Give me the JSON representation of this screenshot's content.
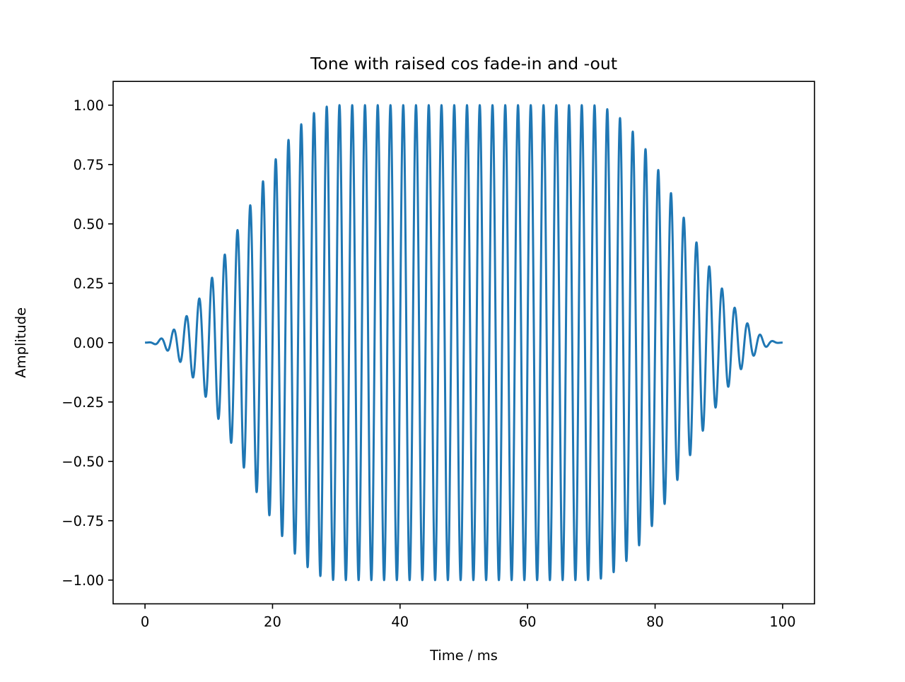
{
  "chart_data": {
    "type": "line",
    "title": "Tone with raised cos fade-in and -out",
    "xlabel": "Time / ms",
    "ylabel": "Amplitude",
    "xlim": [
      -5,
      105
    ],
    "ylim": [
      -1.1,
      1.1
    ],
    "xticks": [
      0,
      20,
      40,
      60,
      80,
      100
    ],
    "xtick_labels": [
      "0",
      "20",
      "40",
      "60",
      "80",
      "100"
    ],
    "yticks": [
      1.0,
      0.75,
      0.5,
      0.25,
      0.0,
      -0.25,
      -0.5,
      -0.75,
      -1.0
    ],
    "ytick_labels": [
      "1.00",
      "0.75",
      "0.50",
      "0.25",
      "0.00",
      "−0.25",
      "−0.50",
      "−0.75",
      "−1.00"
    ],
    "grid": false,
    "series": [
      {
        "color": "#1f77b4",
        "signal": "sine tone, period 2 ms (500 Hz), raised-cosine fade-in 0–30 ms and fade-out 70–100 ms",
        "x_start": 0,
        "x_end": 100,
        "tone_frequency_hz": 500,
        "fade_in_end_ms": 30,
        "fade_out_start_ms": 70,
        "peak_amplitude": 1.0
      }
    ]
  }
}
